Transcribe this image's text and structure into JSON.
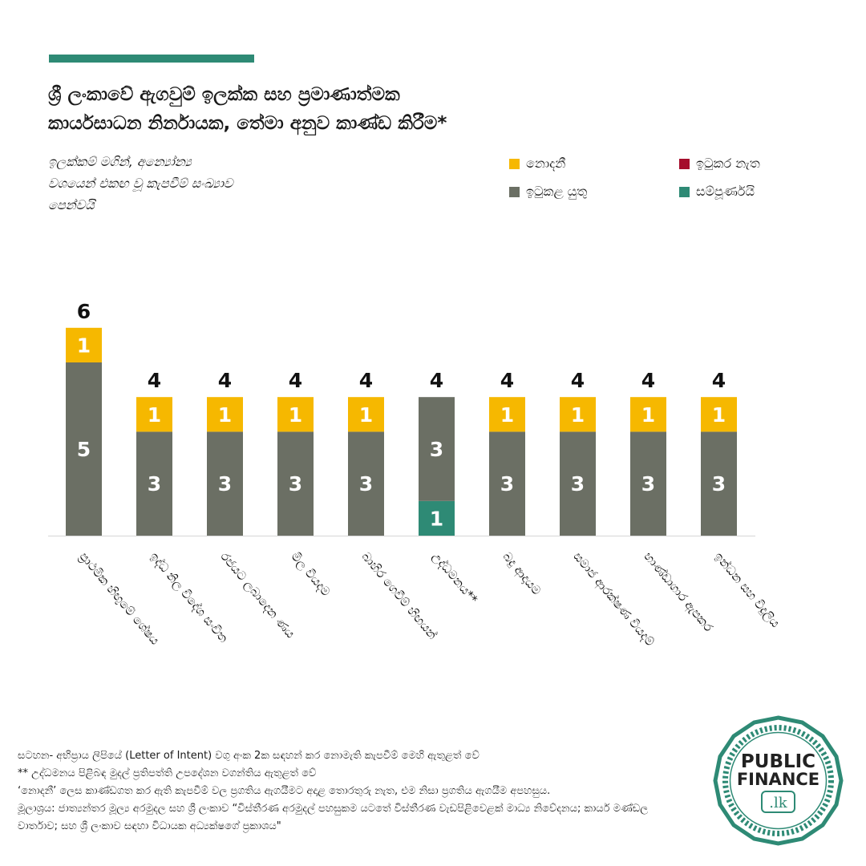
{
  "header": {
    "title_line1": "ශ්‍රී ලංකාවේ ඇගවුම් ඉලක්ක සහ ප්‍රමාණාත්මක",
    "title_line2": "කාර්යසාධන නිර්නායක, තේමා අනුව කාණ්ඩ කිරීම*",
    "subtitle_line1": "ඉලක්කම් මගින්, අන්‍යෝන්‍ය",
    "subtitle_line2": "වශයෙන් එකඟ වූ කැපවීම් සංඛ්‍යාව",
    "subtitle_line3": "පෙන්වයි"
  },
  "legend": [
    {
      "label": "නොදනී",
      "color": "#f6b800",
      "icon": "legend-swatch-icon"
    },
    {
      "label": "ඉටුකර නැත",
      "color": "#a50d2c",
      "icon": "legend-swatch-icon"
    },
    {
      "label": "ඉටුකළ යුතු",
      "color": "#6b6f64",
      "icon": "legend-swatch-icon"
    },
    {
      "label": "සම්පූර්ණයි",
      "color": "#2e8a75",
      "icon": "legend-swatch-icon"
    }
  ],
  "chart_data": {
    "type": "bar",
    "stacked": true,
    "categories": [
      "ප්‍රාථමික හිඟුමේ ශේෂය",
      "ඉද්ධ නිල විදේශ සංචිත",
      "රජයට ලබාදෙන ණය",
      "මිල වියදම",
      "බාහිර ගෙවීම් හිඟයන්",
      "උද්ධමනය**",
      "බදු ආදායම",
      "සමාජ ආරක්ෂණ වියදම්",
      "භාණ්ඩාගාර ඇපකර",
      "ඉන්ධන සහ විදුලිය"
    ],
    "series": [
      {
        "name": "සම්පූර්ණයි",
        "color": "#2e8a75",
        "values": [
          0,
          0,
          0,
          0,
          0,
          1,
          0,
          0,
          0,
          0
        ]
      },
      {
        "name": "ඉටුකළ යුතු",
        "color": "#6b6f64",
        "values": [
          5,
          3,
          3,
          3,
          3,
          3,
          3,
          3,
          3,
          3
        ]
      },
      {
        "name": "ඉටුකර නැත",
        "color": "#a50d2c",
        "values": [
          0,
          0,
          0,
          0,
          0,
          0,
          0,
          0,
          0,
          0
        ]
      },
      {
        "name": "නොදනී",
        "color": "#f6b800",
        "values": [
          1,
          1,
          1,
          1,
          1,
          0,
          1,
          1,
          1,
          1
        ]
      }
    ],
    "totals": [
      6,
      4,
      4,
      4,
      4,
      4,
      4,
      4,
      4,
      4
    ],
    "ylim": [
      0,
      6
    ],
    "grid": false,
    "legend_position": "top-right"
  },
  "footnote": {
    "line1": "සටහන- අභිප්‍රාය ලිපියේ (Letter of Intent) වගු අංක 2ක සඳහන් කර නොමැති කැපවීම් මෙහි ඇතුළත් වේ",
    "line2": "** උද්ධමනය පිළිබඳ මුදල් ප්‍රතිපත්ති උපදේශන වගන්තිය ඇතුළත් වේ",
    "line3": "‘නොදනී’ ලෙස කාණ්ඩගත කර ඇති කැපවීම් වල ප්‍රගතිය ඇගයීමට අදාළ තොරතුරු නැත, එම නිසා ප්‍රගතිය ඇගයීම අපහසුය.",
    "line4": "මූලාශ්‍රය: ජාත්‍යන්තර මූල්‍ය අරමුදල සහ ශ්‍රී ලංකාව “විස්තීරණ අරමුදල් පහසුකම යටතේ විස්තීරණ වැඩපිළිවෙළක් මාධ්‍ය නිවේදනය; කාර්ය මණ්ඩල වාර්තාව; සහ ශ්‍රී ලංකාව සඳහා විධායක අධ්‍යක්ෂගේ ප්‍රකාශය\""
  },
  "logo": {
    "line1": "PUBLIC",
    "line2": "FINANCE",
    "line3": ".lk",
    "color": "#2e8a75"
  }
}
